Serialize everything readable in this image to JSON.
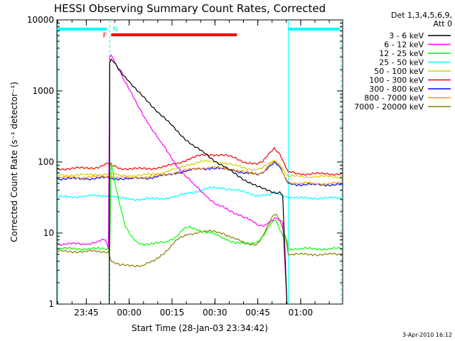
{
  "chart_data": {
    "type": "line",
    "title": "HESSI Observing Summary Count Rates, Corrected",
    "xlabel": "Start Time (28-Jan-03 23:34:42)",
    "ylabel": "Corrected Count Rate (s⁻¹ detector⁻¹)",
    "ylog": true,
    "ylim": [
      1,
      10000
    ],
    "xlim_minutes": [
      0,
      100
    ],
    "x_unit": "minutes after 23:34:42",
    "x_ticks": [
      {
        "label": "23:45",
        "minute": 10.3
      },
      {
        "label": "00:00",
        "minute": 25.3
      },
      {
        "label": "00:15",
        "minute": 40.3
      },
      {
        "label": "00:30",
        "minute": 55.3
      },
      {
        "label": "00:45",
        "minute": 70.3
      },
      {
        "label": "01:00",
        "minute": 85.3
      }
    ],
    "y_ticks": [
      {
        "label": "1",
        "value": 1
      },
      {
        "label": "10",
        "value": 10
      },
      {
        "label": "100",
        "value": 100
      },
      {
        "label": "1000",
        "value": 1000
      },
      {
        "label": "10000",
        "value": 10000
      }
    ],
    "legend": {
      "header": [
        "Det 1,3,4,5,6,9,",
        "Att 0"
      ],
      "placement": "right",
      "entries": [
        {
          "label": "3 - 6 keV",
          "color": "#000000"
        },
        {
          "label": "6 - 12 keV",
          "color": "#ff00ff"
        },
        {
          "label": "12 - 25 keV",
          "color": "#00ff00"
        },
        {
          "label": "25 - 50 keV",
          "color": "#00ffff"
        },
        {
          "label": "50 - 100 keV",
          "color": "#d2d200"
        },
        {
          "label": "100 - 300 keV",
          "color": "#ff0000"
        },
        {
          "label": "300 - 800 keV",
          "color": "#0000ff"
        },
        {
          "label": "800 - 7000 keV",
          "color": "#ff9900"
        },
        {
          "label": "7000 - 20000 keV",
          "color": "#8b7d00"
        }
      ]
    },
    "series": [
      {
        "name": "3 - 6 keV",
        "color": "#000000",
        "x": [
          18.3,
          18.5,
          19,
          20,
          22,
          25,
          28,
          32,
          36,
          40,
          44,
          48,
          52,
          56,
          60,
          64,
          68,
          70,
          72,
          74,
          76,
          77,
          78,
          79,
          80.5
        ],
        "y": [
          1,
          2500,
          2800,
          2500,
          2000,
          1400,
          1000,
          700,
          480,
          330,
          230,
          165,
          130,
          100,
          78,
          62,
          50,
          45,
          42,
          40,
          38,
          36,
          38,
          34,
          1
        ]
      },
      {
        "name": "6 - 12 keV",
        "color": "#ff00ff",
        "x": [
          0,
          5,
          10,
          14,
          17,
          18,
          18.5,
          19,
          20,
          22,
          25,
          28,
          32,
          36,
          40,
          44,
          48,
          52,
          56,
          60,
          64,
          68,
          70,
          72,
          74,
          76,
          77,
          78,
          79,
          80.5
        ],
        "y": [
          7,
          7,
          7,
          7.5,
          8,
          6,
          3000,
          3200,
          2700,
          1900,
          1100,
          650,
          350,
          200,
          115,
          70,
          48,
          34,
          25,
          21,
          18,
          15,
          13,
          12.5,
          14,
          16,
          16,
          15,
          14,
          1
        ]
      },
      {
        "name": "12 - 25 keV",
        "color": "#00ff00",
        "x": [
          0,
          5,
          10,
          15,
          18,
          18.5,
          19,
          20,
          22,
          24,
          26,
          28,
          30,
          34,
          38,
          42,
          44,
          46,
          50,
          54,
          58,
          62,
          66,
          68,
          70,
          72,
          74,
          76,
          77,
          78,
          79,
          80.5,
          81,
          85,
          90,
          95,
          100
        ],
        "y": [
          6,
          6,
          6,
          6,
          6,
          5.5,
          100,
          60,
          25,
          12,
          9,
          7.5,
          7,
          7,
          7.5,
          9,
          11,
          12,
          11,
          10,
          8.5,
          7.5,
          7,
          7,
          7.5,
          9,
          12,
          15,
          14,
          11,
          9,
          8,
          6,
          6,
          6,
          6,
          6
        ]
      },
      {
        "name": "25 - 50 keV",
        "color": "#00ffff",
        "x": [
          0,
          10,
          18,
          19,
          22,
          26,
          30,
          34,
          38,
          42,
          46,
          50,
          54,
          58,
          62,
          66,
          70,
          74,
          76,
          78,
          80,
          81,
          85,
          90,
          95,
          100
        ],
        "y": [
          32,
          33,
          34,
          33,
          31,
          30,
          30,
          30,
          31,
          33,
          36,
          40,
          43,
          43,
          41,
          37,
          34,
          34,
          36,
          35,
          33,
          32,
          31,
          31,
          31,
          31
        ]
      },
      {
        "name": "50 - 100 keV",
        "color": "#d2d200",
        "x": [
          0,
          10,
          15,
          18,
          19,
          22,
          26,
          30,
          34,
          38,
          42,
          46,
          50,
          54,
          58,
          62,
          66,
          70,
          72,
          74,
          76,
          78,
          80,
          81,
          85,
          90,
          95,
          100
        ],
        "y": [
          65,
          66,
          67,
          68,
          68,
          65,
          64,
          65,
          68,
          72,
          80,
          92,
          100,
          102,
          98,
          90,
          82,
          78,
          82,
          95,
          105,
          92,
          70,
          63,
          62,
          62,
          62,
          62
        ]
      },
      {
        "name": "100 - 300 keV",
        "color": "#ff0000",
        "x": [
          0,
          10,
          15,
          18,
          19,
          22,
          26,
          30,
          34,
          38,
          42,
          46,
          50,
          54,
          58,
          62,
          66,
          70,
          72,
          74,
          76,
          78,
          80,
          81,
          85,
          90,
          95,
          100
        ],
        "y": [
          80,
          82,
          85,
          95,
          90,
          82,
          80,
          80,
          82,
          86,
          95,
          110,
          122,
          128,
          125,
          115,
          100,
          92,
          100,
          130,
          160,
          130,
          85,
          72,
          68,
          68,
          68,
          68
        ]
      },
      {
        "name": "300 - 800 keV",
        "color": "#0000ff",
        "x": [
          0,
          10,
          15,
          18,
          19,
          22,
          26,
          30,
          34,
          38,
          42,
          46,
          50,
          54,
          58,
          62,
          66,
          70,
          72,
          74,
          76,
          78,
          80,
          81,
          85,
          90,
          95,
          100
        ],
        "y": [
          58,
          58,
          59,
          60,
          59,
          58,
          58,
          59,
          61,
          65,
          70,
          76,
          80,
          82,
          80,
          76,
          70,
          66,
          70,
          85,
          100,
          85,
          58,
          50,
          48,
          48,
          48,
          48
        ]
      },
      {
        "name": "800 - 7000 keV",
        "color": "#ff9900",
        "x": [
          0,
          10,
          15,
          18,
          19,
          22,
          26,
          30,
          34,
          38,
          42,
          46,
          50,
          54,
          58,
          62,
          66,
          70,
          72,
          74,
          76,
          78,
          80,
          81,
          85,
          90,
          95,
          100
        ],
        "y": [
          60,
          61,
          62,
          63,
          62,
          60,
          60,
          61,
          63,
          67,
          72,
          78,
          82,
          84,
          82,
          78,
          72,
          68,
          72,
          88,
          102,
          88,
          60,
          52,
          50,
          50,
          50,
          50
        ]
      },
      {
        "name": "7000 - 20000 keV",
        "color": "#8b7d00",
        "x": [
          0,
          5,
          10,
          15,
          18,
          19,
          22,
          26,
          30,
          34,
          38,
          42,
          46,
          50,
          54,
          58,
          62,
          66,
          70,
          72,
          74,
          76,
          77,
          78,
          80,
          81,
          85,
          90,
          95,
          100
        ],
        "y": [
          5.5,
          5.5,
          5.5,
          5.5,
          5.5,
          4,
          3.5,
          3.5,
          3.5,
          4,
          5.5,
          8,
          9.5,
          10.5,
          10.5,
          10,
          8.5,
          7,
          7,
          9,
          13,
          18,
          18,
          15,
          9,
          5,
          5,
          5,
          5,
          5
        ]
      }
    ],
    "annotations": {
      "flag_bar_color": "#00ffff",
      "flare_bar_color": "#ff0000",
      "night_marker_color": "#00ffff",
      "flare_label": "F",
      "night_label": "N",
      "flare_bar_minutes": [
        19,
        63
      ],
      "cyan_bars_minutes": [
        [
          0,
          17.5
        ],
        [
          81,
          99
        ]
      ],
      "cyan_dashed_minutes": [
        18.5,
        99.5
      ],
      "cyan_solid_minutes": [
        0.3,
        81
      ]
    }
  },
  "footer": {
    "timestamp": "3-Apr-2010 16:12"
  }
}
